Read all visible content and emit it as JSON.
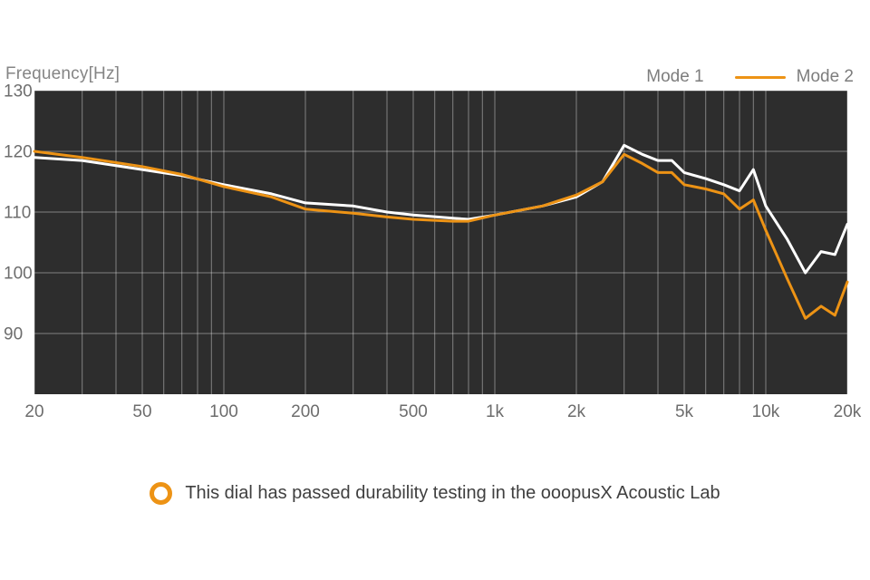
{
  "caption": {
    "text": "This dial has passed durability testing in the ooopusX Acoustic Lab"
  },
  "colors": {
    "plot_bg": "#2d2d2d",
    "grid": "rgba(255,255,255,0.40)",
    "tick_text": "#6d6d6d",
    "header_text": "#858585",
    "caption_text": "#3f3f3f",
    "accent_orange": "#ED9315",
    "mode1_white": "#ffffff"
  },
  "chart_data": {
    "type": "line",
    "title": "Frequency[Hz]",
    "x_scale": "log",
    "x_range": [
      20,
      20000
    ],
    "y_range": [
      80,
      130
    ],
    "grid": true,
    "legend_position": "top-right",
    "x_ticks": [
      20,
      50,
      100,
      200,
      500,
      1000,
      2000,
      5000,
      10000,
      20000
    ],
    "x_tick_labels": [
      "20",
      "50",
      "100",
      "200",
      "500",
      "1k",
      "2k",
      "5k",
      "10k",
      "20k"
    ],
    "y_ticks": [
      130,
      120,
      110,
      100,
      90
    ],
    "legend": [
      {
        "name": "Mode 1",
        "color": "#ffffff"
      },
      {
        "name": "Mode 2",
        "color": "#ED9315"
      }
    ],
    "x": [
      20,
      30,
      50,
      70,
      100,
      150,
      200,
      300,
      400,
      500,
      700,
      800,
      1000,
      1500,
      2000,
      2500,
      3000,
      3500,
      4000,
      4500,
      5000,
      6000,
      7000,
      8000,
      9000,
      10000,
      12000,
      14000,
      16000,
      18000,
      20000
    ],
    "series": [
      {
        "name": "Mode 1",
        "color": "#ffffff",
        "values": [
          119,
          118.5,
          117,
          116,
          114.5,
          113,
          111.5,
          111,
          110,
          109.5,
          109,
          108.8,
          109.5,
          111,
          112.5,
          115,
          121,
          119.5,
          118.5,
          118.5,
          116.5,
          115.5,
          114.5,
          113.5,
          117,
          111,
          105.5,
          100,
          103.5,
          103,
          108
        ]
      },
      {
        "name": "Mode 2",
        "color": "#ED9315",
        "values": [
          120,
          119,
          117.5,
          116.2,
          114.2,
          112.5,
          110.5,
          109.8,
          109.2,
          108.8,
          108.5,
          108.5,
          109.5,
          111,
          112.8,
          115,
          119.5,
          118,
          116.5,
          116.5,
          114.5,
          113.8,
          113,
          110.5,
          112,
          107,
          99,
          92.5,
          94.5,
          93,
          98.5
        ]
      }
    ]
  }
}
